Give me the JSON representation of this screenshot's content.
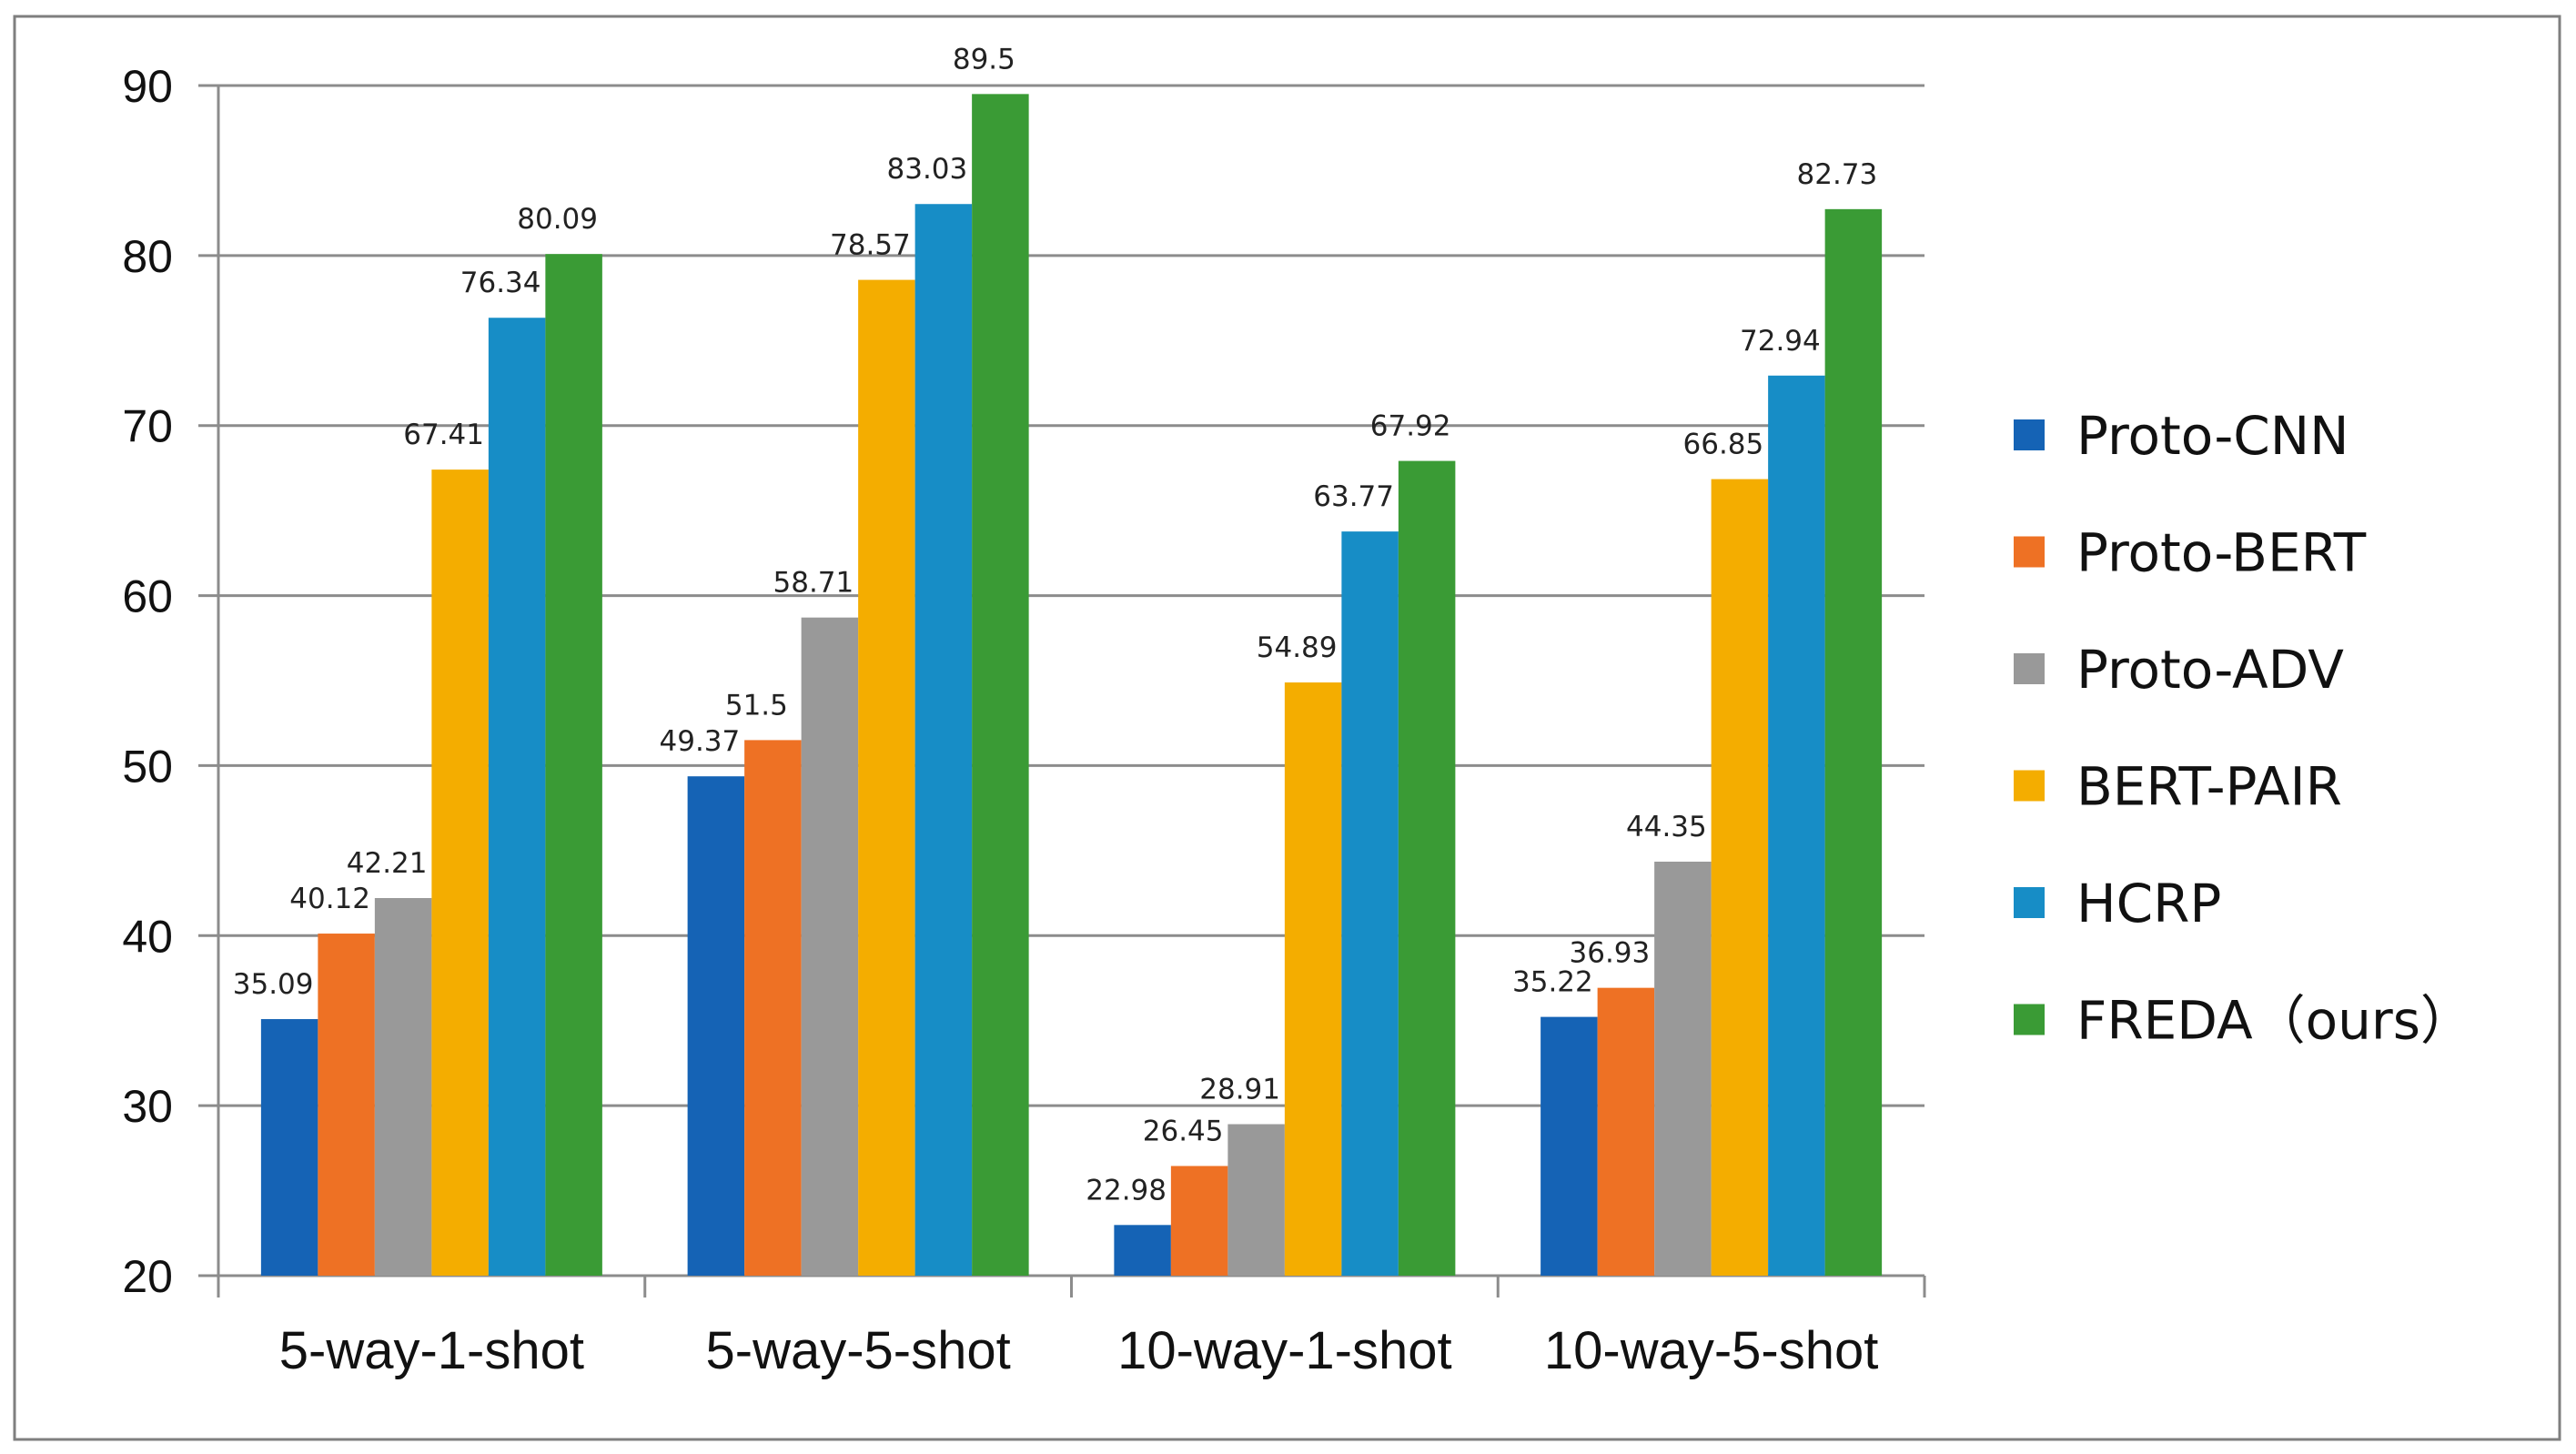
{
  "chart_data": {
    "type": "bar",
    "title": "",
    "xlabel": "",
    "ylabel": "",
    "ylim": [
      20,
      90
    ],
    "yticks": [
      20,
      30,
      40,
      50,
      60,
      70,
      80,
      90
    ],
    "ytick_labels": [
      "20",
      "30",
      "40",
      "50",
      "60",
      "70",
      "80",
      "90"
    ],
    "grid": true,
    "legend_position": "right",
    "categories": [
      "5-way-1-shot",
      "5-way-5-shot",
      "10-way-1-shot",
      "10-way-5-shot"
    ],
    "series": [
      {
        "name": "Proto-CNN",
        "color": "#1563B5",
        "values": [
          35.09,
          49.37,
          22.98,
          35.22
        ],
        "labels": [
          "35.09",
          "49.37",
          "22.98",
          "35.22"
        ]
      },
      {
        "name": "Proto-BERT",
        "color": "#EE7124",
        "values": [
          40.12,
          51.5,
          26.45,
          36.93
        ],
        "labels": [
          "40.12",
          "51.5",
          "26.45",
          "36.93"
        ]
      },
      {
        "name": "Proto-ADV",
        "color": "#999999",
        "values": [
          42.21,
          58.71,
          28.91,
          44.35
        ],
        "labels": [
          "42.21",
          "58.71",
          "28.91",
          "44.35"
        ]
      },
      {
        "name": "BERT-PAIR",
        "color": "#F4AD00",
        "values": [
          67.41,
          78.57,
          54.89,
          66.85
        ],
        "labels": [
          "67.41",
          "78.57",
          "54.89",
          "66.85"
        ]
      },
      {
        "name": "HCRP",
        "color": "#178DC6",
        "values": [
          76.34,
          83.03,
          63.77,
          72.94
        ],
        "labels": [
          "76.34",
          "83.03",
          "63.77",
          "72.94"
        ]
      },
      {
        "name": "FREDA（ours）",
        "color": "#3A9B35",
        "values": [
          80.09,
          89.5,
          67.92,
          82.73
        ],
        "labels": [
          "80.09",
          "89.5",
          "67.92",
          "82.73"
        ]
      }
    ]
  }
}
